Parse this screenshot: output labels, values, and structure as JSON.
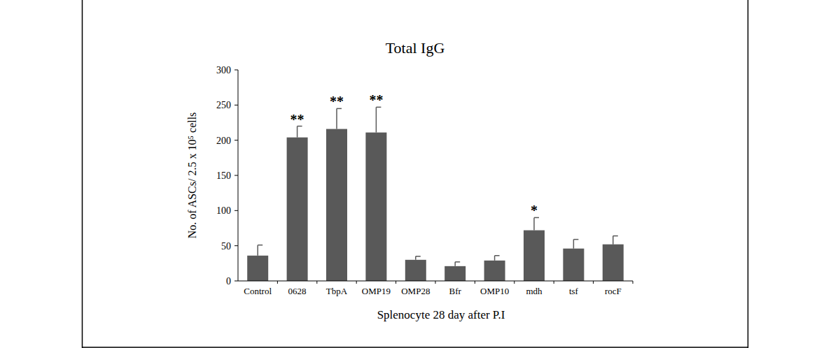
{
  "chart_data": {
    "type": "bar",
    "title": "Total IgG",
    "x_label": "Splenocyte 28 day after P.I",
    "y_label": "No. of ASCs/ 2.5 x 10⁵ cells",
    "categories": [
      "Control",
      "0628",
      "TbpA",
      "OMP19",
      "OMP28",
      "Bfr",
      "OMP10",
      "mdh",
      "tsf",
      "rocF"
    ],
    "values": [
      36,
      204,
      216,
      211,
      30,
      21,
      29,
      72,
      46,
      52
    ],
    "errors": [
      15,
      16,
      29,
      36,
      5,
      6,
      7,
      18,
      13,
      12
    ],
    "annotations": [
      null,
      "**",
      "**",
      "**",
      null,
      null,
      null,
      "*",
      null,
      null
    ],
    "color": "#595959",
    "ylim": [
      0,
      300
    ],
    "yticks": [
      0,
      50,
      100,
      150,
      200,
      250,
      300
    ],
    "grid": false
  }
}
